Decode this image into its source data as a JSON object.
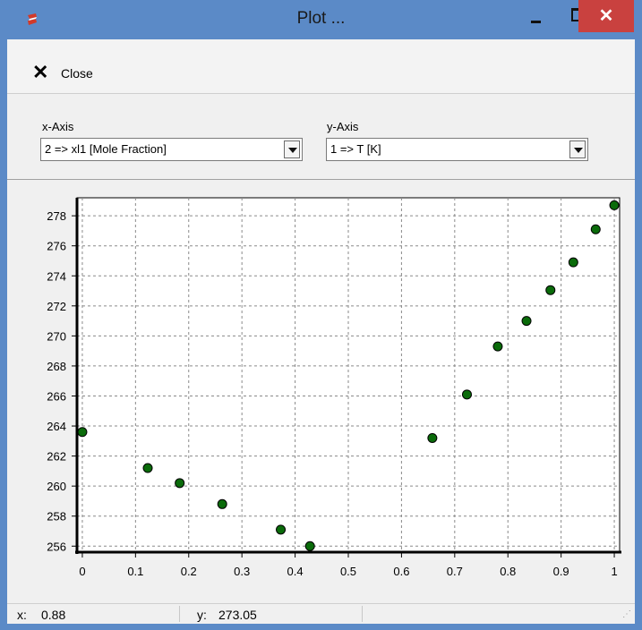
{
  "window": {
    "title": "Plot ...",
    "close_glyph": "✕"
  },
  "toolbar": {
    "close_label": "Close",
    "close_icon": "close-x-icon"
  },
  "axes_selectors": {
    "x_label": "x-Axis",
    "x_value": "2 => xl1 [Mole Fraction]",
    "y_label": "y-Axis",
    "y_value": "1 => T [K]"
  },
  "chart_data": {
    "type": "scatter",
    "title": "",
    "xlabel": "",
    "ylabel": "",
    "xlim": [
      -0.01,
      1.01
    ],
    "ylim": [
      255.6,
      279.2
    ],
    "x_ticks": [
      "0",
      "0.1",
      "0.2",
      "0.3",
      "0.4",
      "0.5",
      "0.6",
      "0.7",
      "0.8",
      "0.9",
      "1"
    ],
    "y_ticks": [
      "256",
      "258",
      "260",
      "262",
      "264",
      "266",
      "268",
      "270",
      "272",
      "274",
      "276",
      "278"
    ],
    "grid": true,
    "marker_color": "#0a6b0a",
    "series": [
      {
        "x": [
          0.0,
          0.123,
          0.183,
          0.263,
          0.373,
          0.428,
          0.658,
          0.723,
          0.781,
          0.835,
          0.88,
          0.923,
          0.965,
          1.0
        ],
        "y": [
          263.6,
          261.2,
          260.2,
          258.8,
          257.1,
          256.0,
          263.2,
          266.1,
          269.3,
          271.0,
          273.05,
          274.9,
          277.1,
          278.7
        ]
      }
    ]
  },
  "status": {
    "x_label": "x:",
    "x_value": "0.88",
    "y_label": "y:",
    "y_value": "273.05"
  }
}
